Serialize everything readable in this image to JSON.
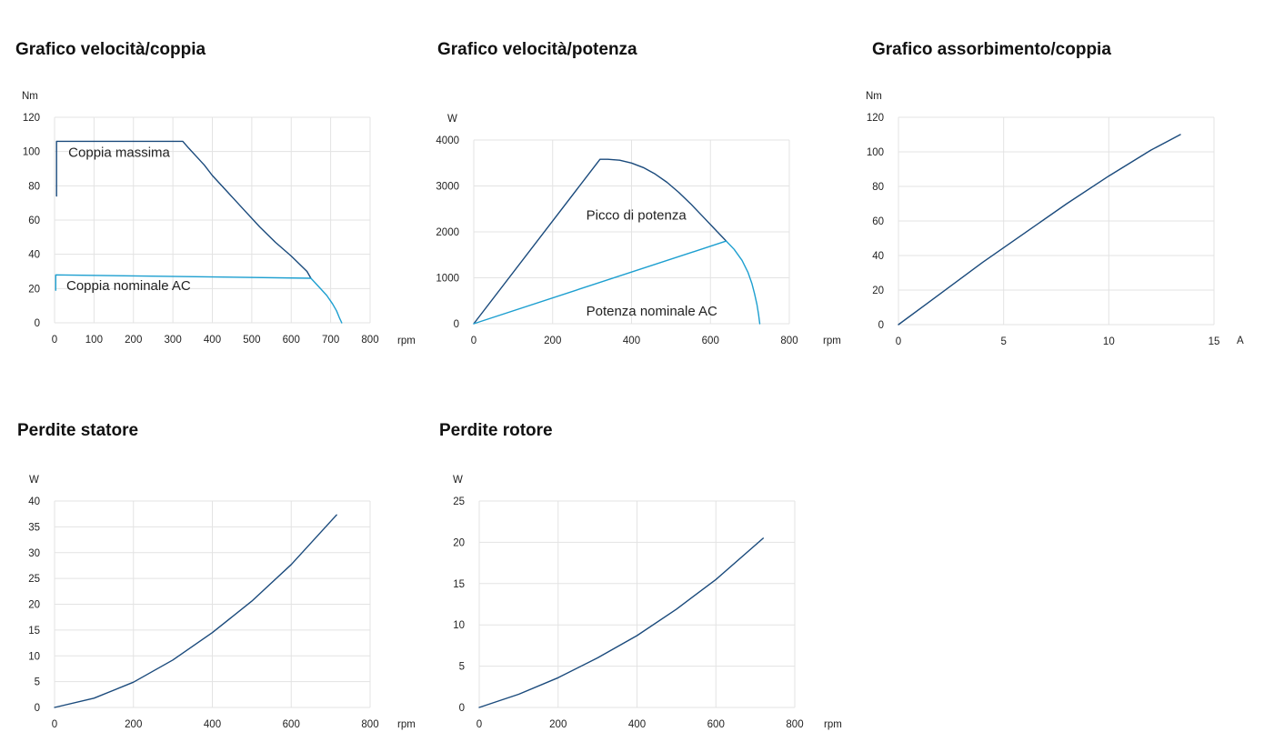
{
  "colors": {
    "dark": "#1a4a7c",
    "light": "#1d9fd0",
    "grid": "#e3e3e3"
  },
  "chart_data": [
    {
      "id": "c1",
      "type": "line",
      "title": "Grafico velocità/coppia",
      "ylabel": "Nm",
      "xlabel": "rpm",
      "xlim": [
        0,
        800
      ],
      "ylim": [
        0,
        120
      ],
      "xticks": [
        0,
        100,
        200,
        300,
        400,
        500,
        600,
        700,
        800
      ],
      "yticks": [
        0,
        20,
        40,
        60,
        80,
        100,
        120
      ],
      "series": [
        {
          "name": "Coppia massima",
          "color": "#1a4a7c",
          "x": [
            5,
            5,
            325,
            340,
            360,
            380,
            400,
            440,
            480,
            520,
            560,
            600,
            640,
            650
          ],
          "y": [
            74,
            106,
            106,
            102,
            97,
            92,
            86,
            76,
            66,
            56,
            47,
            39,
            30,
            26
          ]
        },
        {
          "name": "Coppia nominale AC",
          "color": "#1d9fd0",
          "x": [
            3,
            3,
            650,
            670,
            690,
            705,
            715,
            722,
            728
          ],
          "y": [
            19,
            28,
            26,
            21,
            16,
            11,
            7,
            3,
            0
          ]
        }
      ],
      "annotations": [
        {
          "text": "Coppia massima",
          "x": 35,
          "y": 97
        },
        {
          "text": "Coppia nominale AC",
          "x": 30,
          "y": 19
        }
      ]
    },
    {
      "id": "c2",
      "type": "line",
      "title": "Grafico velocità/potenza",
      "ylabel": "W",
      "xlabel": "rpm",
      "xlim": [
        0,
        800
      ],
      "ylim": [
        0,
        4000
      ],
      "xticks": [
        0,
        200,
        400,
        600,
        800
      ],
      "yticks": [
        0,
        1000,
        2000,
        3000,
        4000
      ],
      "series": [
        {
          "name": "Picco di potenza",
          "color": "#1a4a7c",
          "x": [
            0,
            320,
            340,
            370,
            400,
            430,
            460,
            490,
            520,
            550,
            580,
            610,
            640
          ],
          "y": [
            0,
            3580,
            3580,
            3560,
            3500,
            3400,
            3260,
            3080,
            2860,
            2610,
            2340,
            2070,
            1800
          ]
        },
        {
          "name": "Potenza nominale AC",
          "color": "#1d9fd0",
          "x": [
            0,
            640,
            660,
            680,
            695,
            705,
            712,
            718,
            722,
            725
          ],
          "y": [
            0,
            1800,
            1620,
            1380,
            1120,
            880,
            650,
            420,
            200,
            0
          ]
        }
      ],
      "annotations": [
        {
          "text": "Picco di potenza",
          "x": 285,
          "y": 2270
        },
        {
          "text": "Potenza nominale AC",
          "x": 285,
          "y": 180
        }
      ]
    },
    {
      "id": "c3",
      "type": "line",
      "title": "Grafico assorbimento/coppia",
      "ylabel": "Nm",
      "xlabel": "A",
      "xlim": [
        0,
        15
      ],
      "ylim": [
        0,
        120
      ],
      "xticks": [
        0,
        5,
        10,
        15
      ],
      "yticks": [
        0,
        20,
        40,
        60,
        80,
        100,
        120
      ],
      "series": [
        {
          "name": "",
          "color": "#1a4a7c",
          "x": [
            0,
            2,
            4,
            6,
            8,
            10,
            12,
            13.4
          ],
          "y": [
            0,
            18,
            36,
            53,
            70,
            86,
            101,
            110
          ]
        }
      ],
      "annotations": []
    },
    {
      "id": "c4",
      "type": "line",
      "title": "Perdite statore",
      "ylabel": "W",
      "xlabel": "rpm",
      "xlim": [
        0,
        800
      ],
      "ylim": [
        0,
        40
      ],
      "xticks": [
        0,
        200,
        400,
        600,
        800
      ],
      "yticks": [
        0,
        5,
        10,
        15,
        20,
        25,
        30,
        35,
        40
      ],
      "series": [
        {
          "name": "",
          "color": "#1a4a7c",
          "x": [
            0,
            100,
            200,
            300,
            400,
            500,
            600,
            715
          ],
          "y": [
            0,
            1.8,
            4.9,
            9.2,
            14.5,
            20.6,
            27.7,
            37.3
          ]
        }
      ],
      "annotations": []
    },
    {
      "id": "c5",
      "type": "line",
      "title": "Perdite rotore",
      "ylabel": "W",
      "xlabel": "rpm",
      "xlim": [
        0,
        800
      ],
      "ylim": [
        0,
        25
      ],
      "xticks": [
        0,
        200,
        400,
        600,
        800
      ],
      "yticks": [
        0,
        5,
        10,
        15,
        20,
        25
      ],
      "series": [
        {
          "name": "",
          "color": "#1a4a7c",
          "x": [
            0,
            100,
            200,
            300,
            400,
            500,
            600,
            720
          ],
          "y": [
            0,
            1.6,
            3.6,
            6.0,
            8.7,
            11.9,
            15.5,
            20.5
          ]
        }
      ],
      "annotations": []
    }
  ]
}
